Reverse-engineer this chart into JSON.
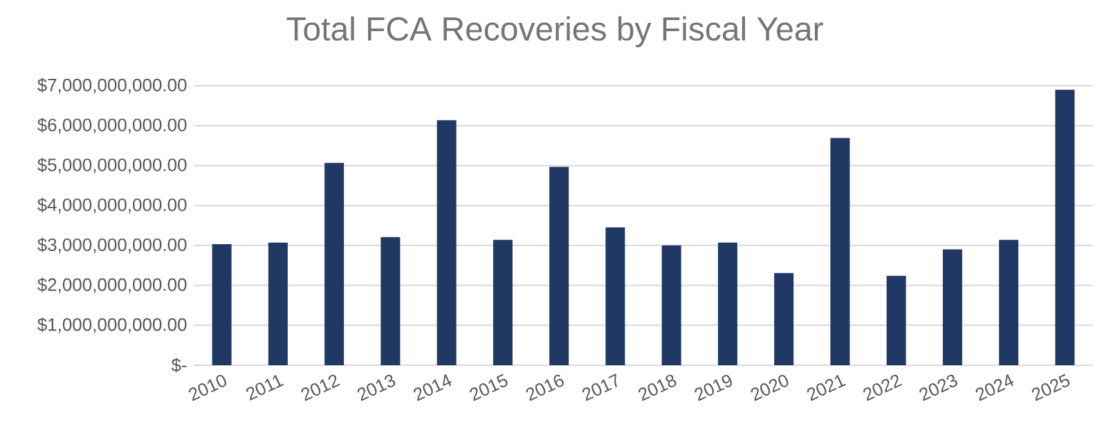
{
  "chart_data": {
    "type": "bar",
    "title": "Total FCA Recoveries by Fiscal Year",
    "categories": [
      "2010",
      "2011",
      "2012",
      "2013",
      "2014",
      "2015",
      "2016",
      "2017",
      "2018",
      "2019",
      "2020",
      "2021",
      "2022",
      "2023",
      "2024",
      "2025"
    ],
    "values": [
      3030000000,
      3070000000,
      5070000000,
      3210000000,
      6140000000,
      3140000000,
      4970000000,
      3450000000,
      3000000000,
      3070000000,
      2310000000,
      5690000000,
      2240000000,
      2900000000,
      3140000000,
      6900000000
    ],
    "color": "#1f3864",
    "ylim": [
      0,
      7000000000
    ],
    "yticks": [
      {
        "value": 0,
        "label": "$-"
      },
      {
        "value": 1000000000,
        "label": "$1,000,000,000.00"
      },
      {
        "value": 2000000000,
        "label": "$2,000,000,000.00"
      },
      {
        "value": 3000000000,
        "label": "$3,000,000,000.00"
      },
      {
        "value": 4000000000,
        "label": "$4,000,000,000.00"
      },
      {
        "value": 5000000000,
        "label": "$5,000,000,000.00"
      },
      {
        "value": 6000000000,
        "label": "$6,000,000,000.00"
      },
      {
        "value": 7000000000,
        "label": "$7,000,000,000.00"
      }
    ],
    "grid": "y"
  }
}
